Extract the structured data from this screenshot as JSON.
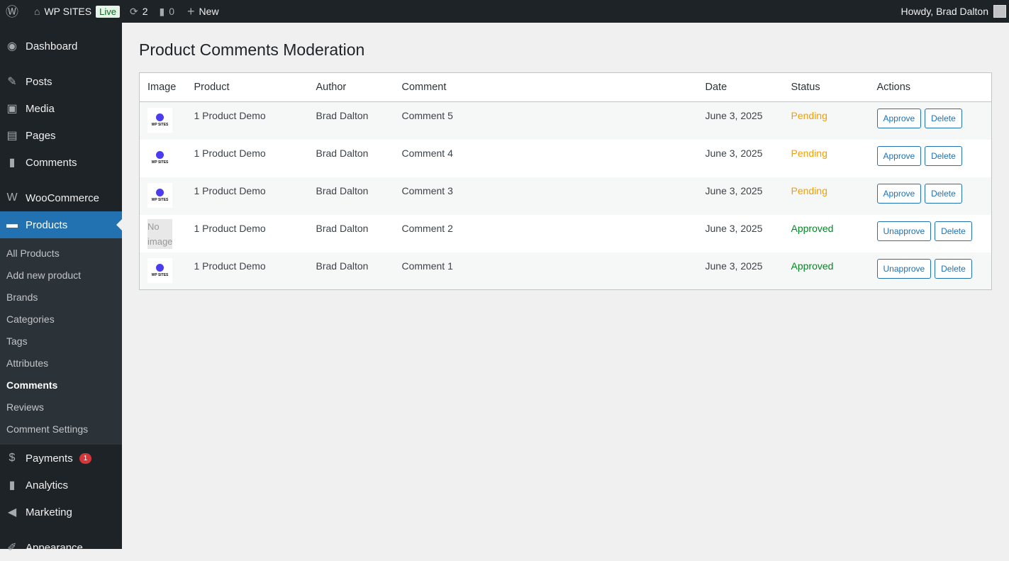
{
  "adminbar": {
    "site": "WP SITES",
    "live": "Live",
    "updates": "2",
    "comments": "0",
    "new": "New",
    "howdy": "Howdy, Brad Dalton"
  },
  "sidebar": {
    "top": [
      {
        "label": "Dashboard",
        "icon": "dashboard-icon"
      },
      {
        "label": "Posts",
        "icon": "pin-icon"
      },
      {
        "label": "Media",
        "icon": "media-icon"
      },
      {
        "label": "Pages",
        "icon": "pages-icon"
      },
      {
        "label": "Comments",
        "icon": "comment-icon"
      },
      {
        "label": "WooCommerce",
        "icon": "woocommerce-icon"
      },
      {
        "label": "Products",
        "icon": "archive-icon"
      }
    ],
    "sub": [
      "All Products",
      "Add new product",
      "Brands",
      "Categories",
      "Tags",
      "Attributes",
      "Comments",
      "Reviews",
      "Comment Settings"
    ],
    "bottom": [
      {
        "label": "Payments",
        "icon": "dollar-icon",
        "badge": "1"
      },
      {
        "label": "Analytics",
        "icon": "chart-icon"
      },
      {
        "label": "Marketing",
        "icon": "megaphone-icon"
      },
      {
        "label": "Appearance",
        "icon": "brush-icon"
      }
    ]
  },
  "page": {
    "title": "Product Comments Moderation"
  },
  "table": {
    "headers": [
      "Image",
      "Product",
      "Author",
      "Comment",
      "Date",
      "Status",
      "Actions"
    ],
    "no_image": "No image",
    "logo_text": "WP SITES",
    "rows": [
      {
        "product": "1 Product Demo",
        "author": "Brad Dalton",
        "comment": "Comment 5",
        "date": "June 3, 2025",
        "status": "Pending",
        "action": "Approve",
        "delete": "Delete"
      },
      {
        "product": "1 Product Demo",
        "author": "Brad Dalton",
        "comment": "Comment 4",
        "date": "June 3, 2025",
        "status": "Pending",
        "action": "Approve",
        "delete": "Delete"
      },
      {
        "product": "1 Product Demo",
        "author": "Brad Dalton",
        "comment": "Comment 3",
        "date": "June 3, 2025",
        "status": "Pending",
        "action": "Approve",
        "delete": "Delete"
      },
      {
        "product": "1 Product Demo",
        "author": "Brad Dalton",
        "comment": "Comment 2",
        "date": "June 3, 2025",
        "status": "Approved",
        "action": "Unapprove",
        "delete": "Delete",
        "noimage": true
      },
      {
        "product": "1 Product Demo",
        "author": "Brad Dalton",
        "comment": "Comment 1",
        "date": "June 3, 2025",
        "status": "Approved",
        "action": "Unapprove",
        "delete": "Delete"
      }
    ]
  },
  "colors": {
    "pending": "#f0a000",
    "approved": "#008a20",
    "accent": "#2271b1"
  }
}
